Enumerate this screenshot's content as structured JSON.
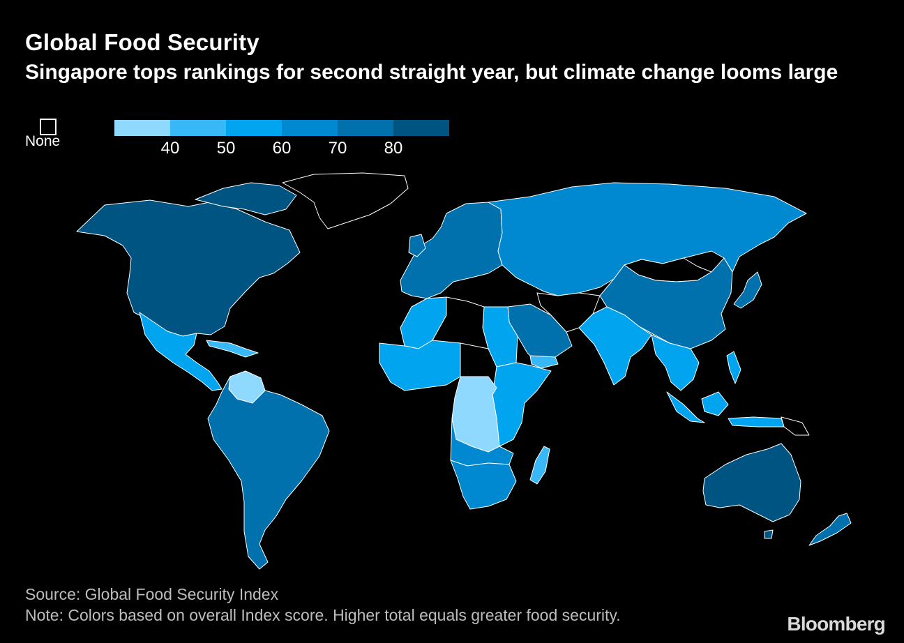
{
  "header": {
    "title": "Global Food Security",
    "subtitle": "Singapore tops rankings for second straight year, but climate change looms large"
  },
  "legend": {
    "none_label": "None",
    "none_color": "#000000",
    "bin_colors": [
      "#8fd8ff",
      "#38b8f7",
      "#00a4ef",
      "#0088d0",
      "#0071ad",
      "#005482"
    ],
    "ticks": [
      "40",
      "50",
      "60",
      "70",
      "80"
    ]
  },
  "map": {
    "outline_color": "#ffffff",
    "regions": [
      {
        "name": "North America",
        "score_bin": 6
      },
      {
        "name": "Greenland",
        "score_bin": 0
      },
      {
        "name": "Mexico and Central America",
        "score_bin": 3
      },
      {
        "name": "Caribbean",
        "score_bin": 2
      },
      {
        "name": "South America",
        "score_bin": 5
      },
      {
        "name": "Venezuela",
        "score_bin": 1
      },
      {
        "name": "Europe",
        "score_bin": 5
      },
      {
        "name": "Russia and Central Asia",
        "score_bin": 4
      },
      {
        "name": "North Africa",
        "score_bin": 3
      },
      {
        "name": "Sahara",
        "score_bin": 0
      },
      {
        "name": "West Africa",
        "score_bin": 3
      },
      {
        "name": "Central Africa",
        "score_bin": 1
      },
      {
        "name": "East Africa",
        "score_bin": 3
      },
      {
        "name": "Southern Africa",
        "score_bin": 4
      },
      {
        "name": "Madagascar",
        "score_bin": 2
      },
      {
        "name": "Middle East",
        "score_bin": 5
      },
      {
        "name": "South Asia",
        "score_bin": 3
      },
      {
        "name": "China",
        "score_bin": 5
      },
      {
        "name": "Mongolia",
        "score_bin": 0
      },
      {
        "name": "Southeast Asia",
        "score_bin": 3
      },
      {
        "name": "Indonesia",
        "score_bin": 3
      },
      {
        "name": "Japan",
        "score_bin": 5
      },
      {
        "name": "Australia",
        "score_bin": 6
      },
      {
        "name": "New Zealand",
        "score_bin": 5
      }
    ]
  },
  "footer": {
    "source": "Source: Global Food Security Index",
    "note": "Note: Colors based on overall Index score. Higher total equals greater food security.",
    "brand": "Bloomberg"
  }
}
